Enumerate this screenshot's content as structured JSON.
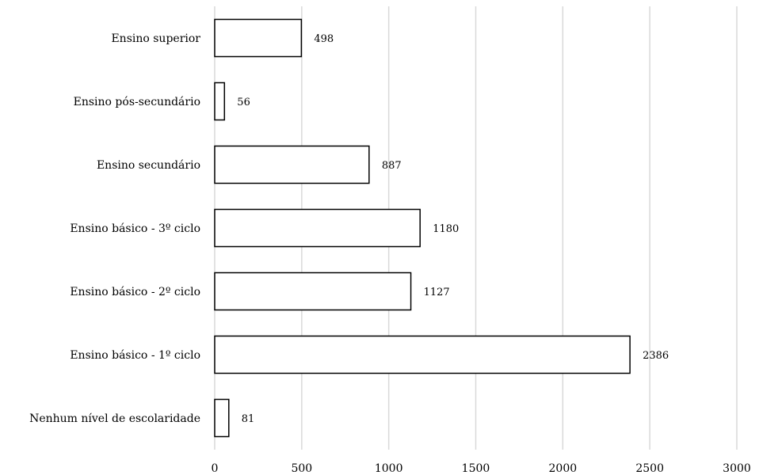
{
  "chart_data": {
    "type": "bar",
    "orientation": "horizontal",
    "categories": [
      "Ensino superior",
      "Ensino pós-secundário",
      "Ensino secundário",
      "Ensino básico - 3º ciclo",
      "Ensino básico - 2º ciclo",
      "Ensino básico - 1º ciclo",
      "Nenhum nível de escolaridade"
    ],
    "values": [
      498,
      56,
      887,
      1180,
      1127,
      2386,
      81
    ],
    "value_labels": [
      "498",
      "56",
      "887",
      "1180",
      "1127",
      "2386",
      "81"
    ],
    "xlim": [
      0,
      3000
    ],
    "x_ticks": [
      0,
      500,
      1000,
      1500,
      2000,
      2500,
      3000
    ],
    "x_tick_labels": [
      "0",
      "500",
      "1000",
      "1500",
      "2000",
      "2500",
      "3000"
    ],
    "grid": "vertical",
    "bar_fill": "#ffffff",
    "bar_stroke": "#000000",
    "grid_color": "#d9d9d9",
    "legend": "none"
  }
}
